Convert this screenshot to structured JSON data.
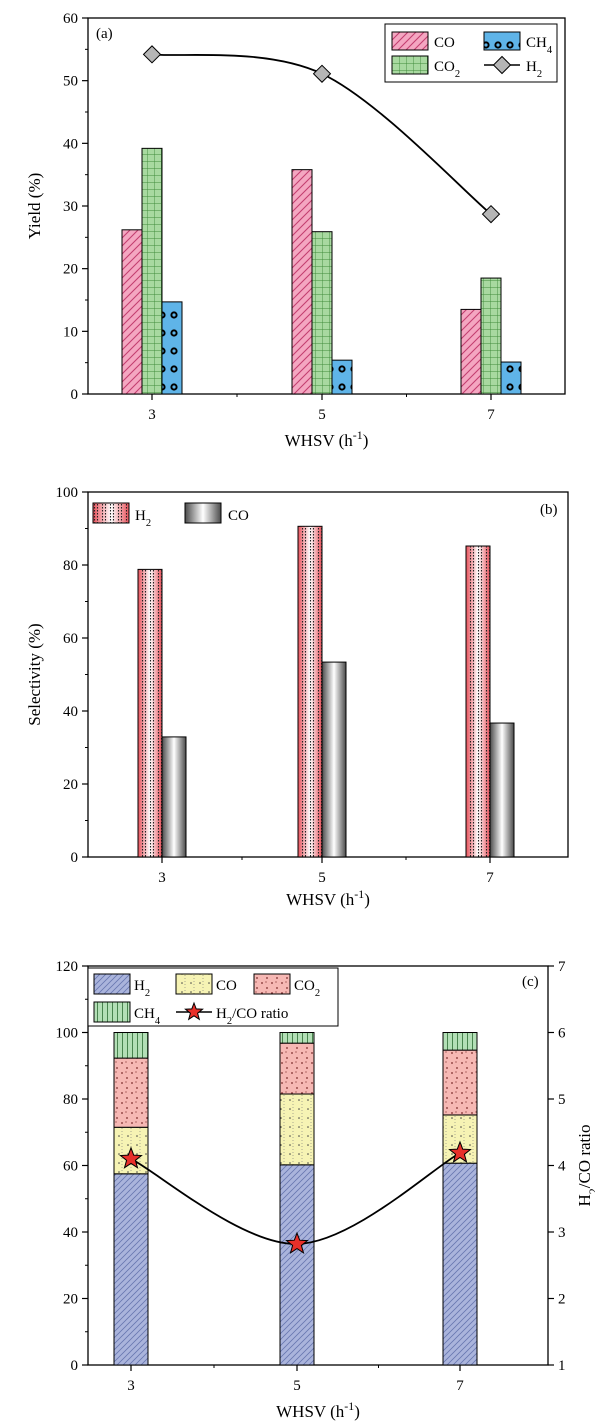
{
  "chart_data": [
    {
      "type": "bar",
      "panel": "(a)",
      "xlabel": "WHSV (h⁻¹)",
      "ylabel": "Yield (%)",
      "categories": [
        "3",
        "5",
        "7"
      ],
      "ylim": [
        0,
        60
      ],
      "yticks": [
        "0",
        "10",
        "20",
        "30",
        "40",
        "50",
        "60"
      ],
      "series": [
        {
          "name": "CO",
          "kind": "bar",
          "color": "#f4a6c1",
          "values": [
            26.2,
            35.8,
            13.5
          ]
        },
        {
          "name": "CO₂",
          "kind": "bar",
          "color": "#a8d9a0",
          "values": [
            39.2,
            25.9,
            18.5
          ]
        },
        {
          "name": "CH₄",
          "kind": "bar",
          "color": "#5fb4e8",
          "values": [
            14.7,
            5.4,
            5.1
          ]
        },
        {
          "name": "H₂",
          "kind": "line",
          "color": "#000000",
          "marker": "diamond",
          "values": [
            54.2,
            51.1,
            28.7
          ]
        }
      ],
      "legend": "top-right",
      "grid": false
    },
    {
      "type": "bar",
      "panel": "(b)",
      "xlabel": "WHSV (h⁻¹)",
      "ylabel": "Selectivity (%)",
      "categories": [
        "3",
        "5",
        "7"
      ],
      "ylim": [
        0,
        100
      ],
      "yticks": [
        "0",
        "20",
        "40",
        "60",
        "80",
        "100"
      ],
      "series": [
        {
          "name": "H₂",
          "kind": "bar",
          "color": "#e8505a",
          "values": [
            78.8,
            90.6,
            85.2
          ]
        },
        {
          "name": "CO",
          "kind": "bar",
          "color": "#8a8a8a",
          "values": [
            32.9,
            53.4,
            36.7
          ]
        }
      ],
      "legend": "top-left",
      "grid": false
    },
    {
      "type": "bar",
      "panel": "(c)",
      "stacked": true,
      "xlabel": "WHSV (h⁻¹)",
      "ylabel": "",
      "y2label": "H₂/CO ratio",
      "categories": [
        "3",
        "5",
        "7"
      ],
      "ylim": [
        0,
        120
      ],
      "y2lim": [
        1,
        7
      ],
      "yticks": [
        "0",
        "20",
        "40",
        "60",
        "80",
        "100",
        "120"
      ],
      "y2ticks": [
        "1",
        "2",
        "3",
        "4",
        "5",
        "6",
        "7"
      ],
      "series": [
        {
          "name": "H₂",
          "kind": "bar",
          "color": "#aab4dc",
          "values": [
            57.5,
            60.2,
            60.7
          ]
        },
        {
          "name": "CO",
          "kind": "bar",
          "color": "#f6f3b4",
          "values": [
            14.0,
            21.3,
            14.5
          ]
        },
        {
          "name": "CO₂",
          "kind": "bar",
          "color": "#f6b8b4",
          "values": [
            20.8,
            15.3,
            19.5
          ]
        },
        {
          "name": "CH₄",
          "kind": "bar",
          "color": "#b3dfb6",
          "values": [
            7.7,
            3.2,
            5.3
          ]
        },
        {
          "name": "H₂/CO ratio",
          "kind": "line",
          "axis": "right",
          "color": "#e8302a",
          "marker": "star",
          "values": [
            4.1,
            2.82,
            4.19
          ]
        }
      ],
      "legend": "top",
      "grid": false
    }
  ]
}
